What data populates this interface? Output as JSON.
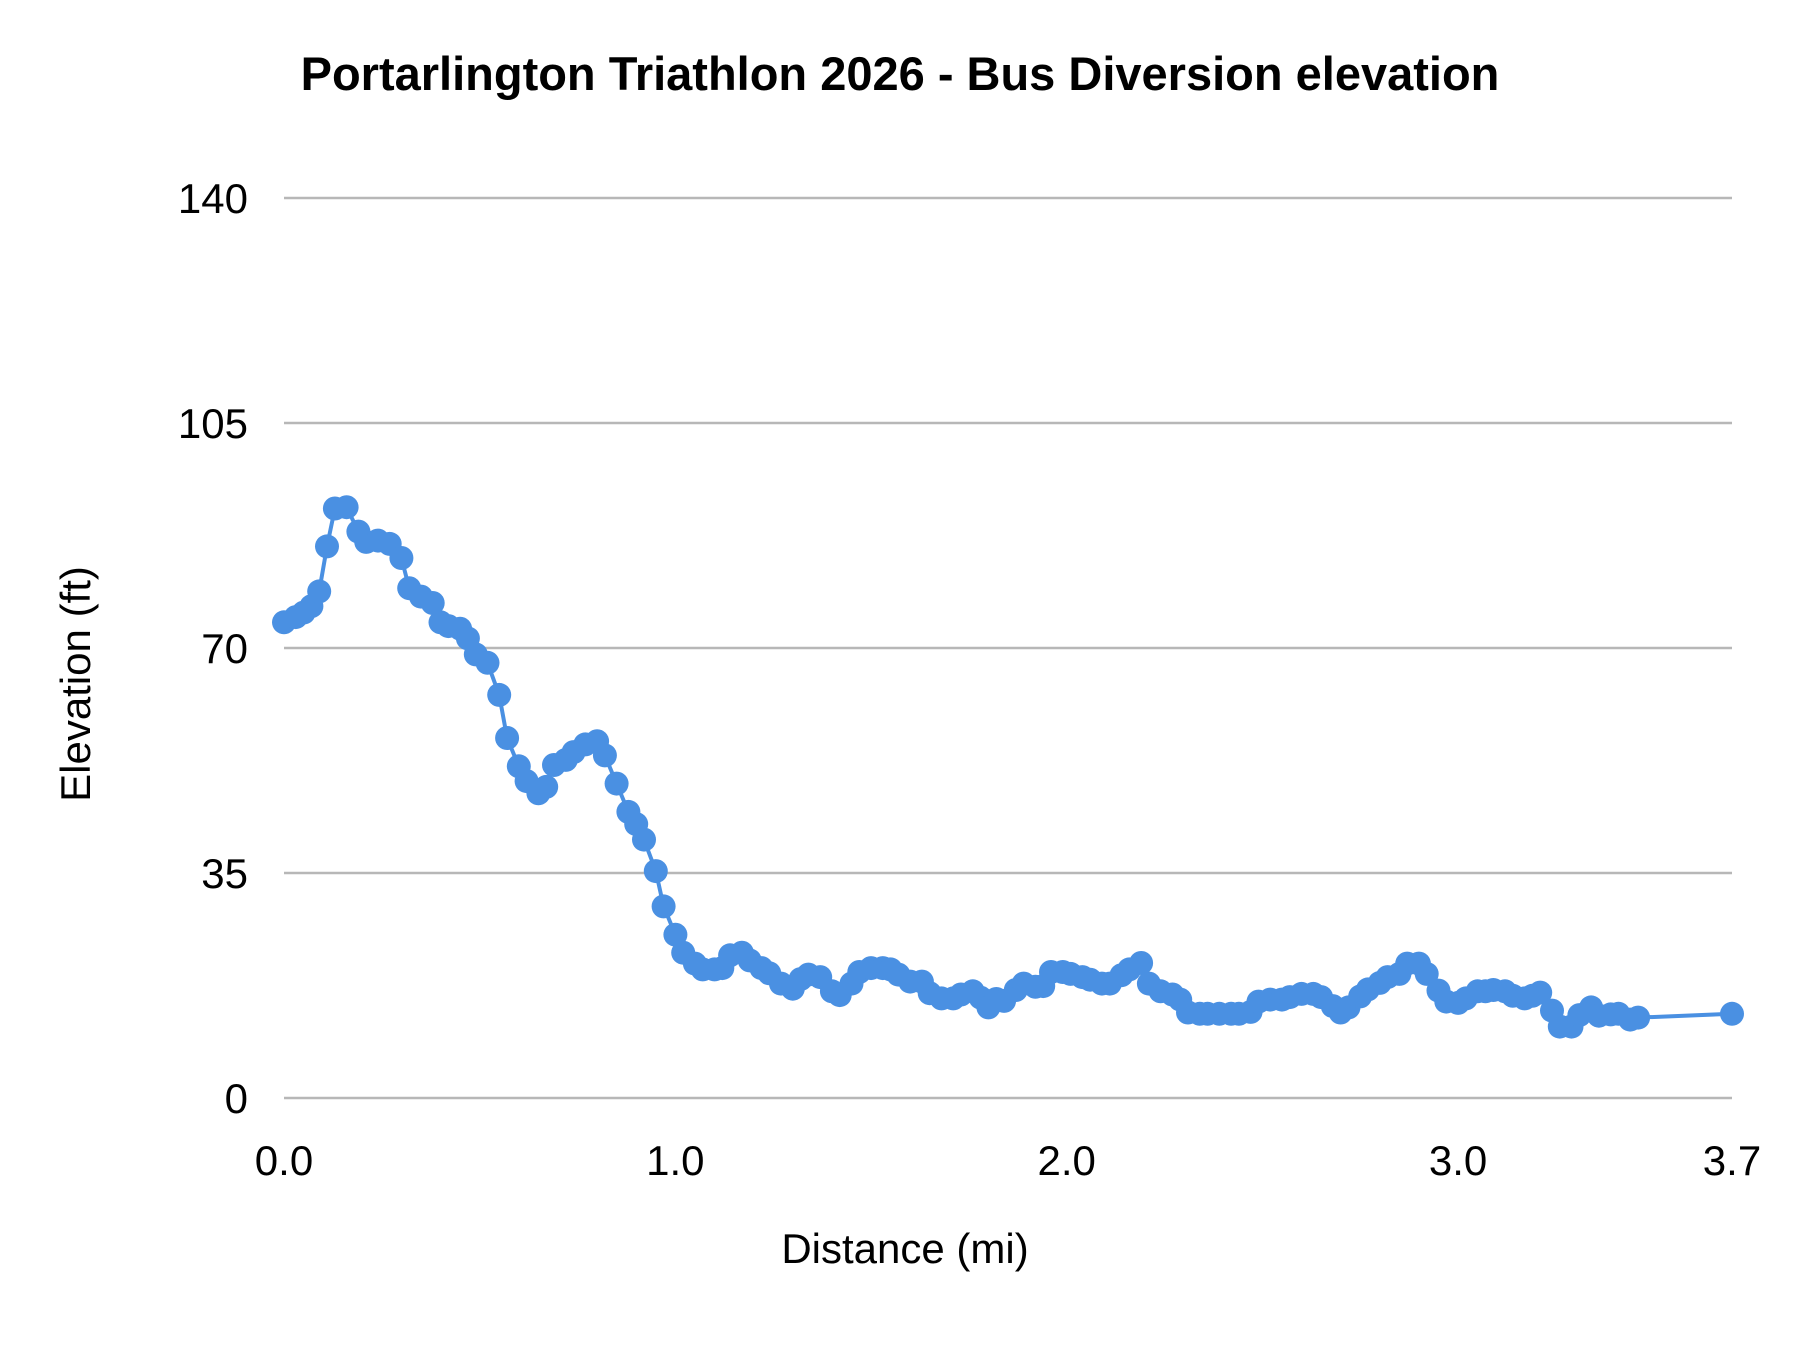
{
  "chart_data": {
    "type": "line",
    "title": "Portarlington Triathlon 2026 - Bus Diversion  elevation",
    "xlabel": "Distance (mi)",
    "ylabel": "Elevation (ft)",
    "xlim": [
      0,
      3.7
    ],
    "ylim": [
      0,
      140
    ],
    "x_ticks": [
      0.0,
      1.0,
      2.0,
      3.0,
      3.7
    ],
    "x_tick_labels": [
      "0.0",
      "1.0",
      "2.0",
      "3.0",
      "3.7"
    ],
    "y_ticks": [
      0,
      35,
      70,
      105,
      140
    ],
    "y_tick_labels": [
      "0",
      "35",
      "70",
      "105",
      "140"
    ],
    "grid": true,
    "legend": "none",
    "series_color": "#4a90e2",
    "points": [
      [
        0.0,
        74.0
      ],
      [
        0.03,
        74.8
      ],
      [
        0.05,
        75.5
      ],
      [
        0.07,
        76.5
      ],
      [
        0.09,
        78.8
      ],
      [
        0.11,
        85.8
      ],
      [
        0.13,
        91.7
      ],
      [
        0.16,
        91.9
      ],
      [
        0.19,
        88.1
      ],
      [
        0.21,
        86.5
      ],
      [
        0.24,
        86.7
      ],
      [
        0.27,
        86.2
      ],
      [
        0.3,
        84.0
      ],
      [
        0.32,
        79.3
      ],
      [
        0.35,
        78.0
      ],
      [
        0.38,
        77.0
      ],
      [
        0.4,
        74.0
      ],
      [
        0.42,
        73.4
      ],
      [
        0.45,
        73.0
      ],
      [
        0.47,
        71.5
      ],
      [
        0.49,
        69.0
      ],
      [
        0.52,
        67.7
      ],
      [
        0.55,
        62.7
      ],
      [
        0.57,
        56.0
      ],
      [
        0.6,
        51.6
      ],
      [
        0.62,
        49.3
      ],
      [
        0.65,
        47.4
      ],
      [
        0.67,
        48.4
      ],
      [
        0.69,
        51.8
      ],
      [
        0.72,
        52.6
      ],
      [
        0.74,
        53.8
      ],
      [
        0.77,
        55.0
      ],
      [
        0.8,
        55.5
      ],
      [
        0.82,
        53.3
      ],
      [
        0.85,
        48.9
      ],
      [
        0.88,
        44.5
      ],
      [
        0.9,
        42.6
      ],
      [
        0.92,
        40.2
      ],
      [
        0.95,
        35.3
      ],
      [
        0.97,
        29.8
      ],
      [
        1.0,
        25.4
      ],
      [
        1.02,
        22.6
      ],
      [
        1.05,
        20.9
      ],
      [
        1.07,
        20.0
      ],
      [
        1.1,
        20.0
      ],
      [
        1.12,
        20.2
      ],
      [
        1.14,
        22.2
      ],
      [
        1.17,
        22.6
      ],
      [
        1.19,
        21.4
      ],
      [
        1.22,
        20.2
      ],
      [
        1.24,
        19.4
      ],
      [
        1.27,
        17.8
      ],
      [
        1.3,
        17.0
      ],
      [
        1.32,
        18.5
      ],
      [
        1.34,
        19.2
      ],
      [
        1.37,
        18.8
      ],
      [
        1.4,
        16.6
      ],
      [
        1.42,
        16.0
      ],
      [
        1.45,
        17.8
      ],
      [
        1.47,
        19.6
      ],
      [
        1.5,
        20.2
      ],
      [
        1.53,
        20.2
      ],
      [
        1.55,
        20.0
      ],
      [
        1.57,
        19.2
      ],
      [
        1.6,
        18.1
      ],
      [
        1.63,
        18.1
      ],
      [
        1.65,
        16.3
      ],
      [
        1.68,
        15.5
      ],
      [
        1.71,
        15.5
      ],
      [
        1.73,
        16.1
      ],
      [
        1.76,
        16.6
      ],
      [
        1.78,
        15.6
      ],
      [
        1.8,
        14.1
      ],
      [
        1.82,
        15.4
      ],
      [
        1.84,
        15.1
      ],
      [
        1.87,
        16.8
      ],
      [
        1.89,
        17.8
      ],
      [
        1.92,
        17.3
      ],
      [
        1.94,
        17.4
      ],
      [
        1.96,
        19.6
      ],
      [
        1.99,
        19.6
      ],
      [
        2.01,
        19.3
      ],
      [
        2.04,
        18.8
      ],
      [
        2.06,
        18.4
      ],
      [
        2.09,
        17.8
      ],
      [
        2.11,
        17.8
      ],
      [
        2.14,
        19.1
      ],
      [
        2.16,
        20.0
      ],
      [
        2.19,
        21.0
      ],
      [
        2.21,
        17.8
      ],
      [
        2.24,
        16.6
      ],
      [
        2.27,
        16.1
      ],
      [
        2.29,
        15.3
      ],
      [
        2.31,
        13.3
      ],
      [
        2.34,
        13.1
      ],
      [
        2.36,
        13.1
      ],
      [
        2.39,
        13.1
      ],
      [
        2.42,
        13.1
      ],
      [
        2.44,
        13.1
      ],
      [
        2.47,
        13.4
      ],
      [
        2.49,
        15.0
      ],
      [
        2.52,
        15.3
      ],
      [
        2.55,
        15.3
      ],
      [
        2.57,
        15.7
      ],
      [
        2.6,
        16.2
      ],
      [
        2.63,
        16.2
      ],
      [
        2.65,
        15.7
      ],
      [
        2.68,
        14.3
      ],
      [
        2.7,
        13.3
      ],
      [
        2.72,
        14.1
      ],
      [
        2.75,
        15.8
      ],
      [
        2.77,
        16.9
      ],
      [
        2.8,
        17.9
      ],
      [
        2.82,
        18.8
      ],
      [
        2.85,
        19.3
      ],
      [
        2.87,
        20.9
      ],
      [
        2.9,
        20.9
      ],
      [
        2.92,
        19.3
      ],
      [
        2.95,
        16.7
      ],
      [
        2.97,
        15.0
      ],
      [
        3.0,
        14.8
      ],
      [
        3.02,
        15.5
      ],
      [
        3.05,
        16.6
      ],
      [
        3.07,
        16.6
      ],
      [
        3.09,
        16.8
      ],
      [
        3.12,
        16.6
      ],
      [
        3.14,
        15.9
      ],
      [
        3.17,
        15.5
      ],
      [
        3.19,
        15.9
      ],
      [
        3.21,
        16.4
      ],
      [
        3.24,
        13.6
      ],
      [
        3.26,
        11.1
      ],
      [
        3.29,
        11.1
      ],
      [
        3.31,
        12.9
      ],
      [
        3.34,
        14.1
      ],
      [
        3.36,
        12.8
      ],
      [
        3.39,
        13.0
      ],
      [
        3.41,
        13.1
      ],
      [
        3.44,
        12.2
      ],
      [
        3.46,
        12.5
      ],
      [
        3.7,
        13.1
      ]
    ]
  }
}
